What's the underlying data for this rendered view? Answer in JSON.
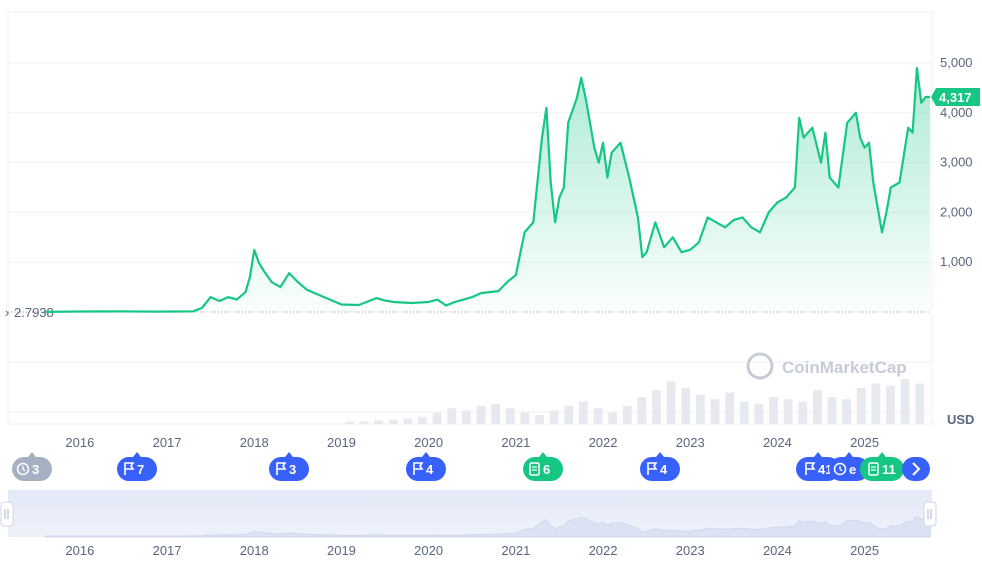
{
  "chart_data": {
    "type": "area",
    "currency_label": "USD",
    "watermark": "CoinMarketCap",
    "start_label": "2.7938",
    "current_price_label": "4,317",
    "y_ticks": [
      "5,000",
      "4,000",
      "3,000",
      "2,000",
      "1,000"
    ],
    "ylim": [
      0,
      5000
    ],
    "xlim": [
      2015.6,
      2025.75
    ],
    "x_ticks": [
      "2016",
      "2017",
      "2018",
      "2019",
      "2020",
      "2021",
      "2022",
      "2023",
      "2024",
      "2025"
    ],
    "series": [
      {
        "x": [
          2015.6,
          2016.0,
          2016.5,
          2016.9,
          2017.1,
          2017.3,
          2017.4,
          2017.5,
          2017.6,
          2017.7,
          2017.8,
          2017.9,
          2017.95,
          2018.0,
          2018.05,
          2018.1,
          2018.2,
          2018.3,
          2018.4,
          2018.5,
          2018.6,
          2018.8,
          2019.0,
          2019.2,
          2019.4,
          2019.5,
          2019.6,
          2019.8,
          2020.0,
          2020.1,
          2020.2,
          2020.3,
          2020.4,
          2020.5,
          2020.6,
          2020.7,
          2020.8,
          2020.9,
          2021.0,
          2021.1,
          2021.2,
          2021.3,
          2021.35,
          2021.4,
          2021.45,
          2021.5,
          2021.55,
          2021.6,
          2021.7,
          2021.75,
          2021.8,
          2021.85,
          2021.9,
          2021.95,
          2022.0,
          2022.05,
          2022.1,
          2022.2,
          2022.3,
          2022.4,
          2022.45,
          2022.5,
          2022.6,
          2022.7,
          2022.8,
          2022.9,
          2023.0,
          2023.1,
          2023.2,
          2023.3,
          2023.4,
          2023.5,
          2023.6,
          2023.7,
          2023.8,
          2023.9,
          2024.0,
          2024.1,
          2024.2,
          2024.25,
          2024.3,
          2024.4,
          2024.5,
          2024.55,
          2024.6,
          2024.7,
          2024.8,
          2024.9,
          2024.95,
          2025.0,
          2025.05,
          2025.1,
          2025.2,
          2025.25,
          2025.3,
          2025.4,
          2025.5,
          2025.55,
          2025.6,
          2025.65,
          2025.7,
          2025.75
        ],
        "y": [
          2.79,
          10,
          12,
          9,
          10,
          15,
          80,
          300,
          220,
          300,
          250,
          400,
          700,
          1250,
          1000,
          850,
          600,
          500,
          780,
          600,
          450,
          300,
          150,
          140,
          280,
          230,
          200,
          180,
          200,
          250,
          130,
          200,
          250,
          300,
          380,
          400,
          420,
          600,
          740,
          1600,
          1800,
          3500,
          4100,
          2600,
          1800,
          2300,
          2500,
          3800,
          4300,
          4700,
          4300,
          3800,
          3300,
          3000,
          3400,
          2700,
          3200,
          3400,
          2700,
          1900,
          1100,
          1200,
          1800,
          1300,
          1500,
          1200,
          1250,
          1400,
          1900,
          1800,
          1700,
          1850,
          1900,
          1700,
          1600,
          2000,
          2200,
          2300,
          2500,
          3900,
          3500,
          3700,
          3000,
          3600,
          2700,
          2500,
          3800,
          4000,
          3500,
          3300,
          3400,
          2600,
          1600,
          2000,
          2500,
          2600,
          3700,
          3600,
          4900,
          4200,
          4317,
          4317
        ]
      }
    ],
    "volume": [
      0.05,
      0.06,
      0.08,
      0.1,
      0.12,
      0.15,
      0.25,
      0.35,
      0.3,
      0.4,
      0.45,
      0.35,
      0.25,
      0.2,
      0.3,
      0.4,
      0.5,
      0.35,
      0.25,
      0.4,
      0.6,
      0.75,
      0.95,
      0.8,
      0.65,
      0.55,
      0.7,
      0.5,
      0.45,
      0.6,
      0.55,
      0.5,
      0.75,
      0.6,
      0.55,
      0.8,
      0.9,
      0.85,
      1.0,
      0.9
    ],
    "events": [
      {
        "label": "3",
        "icon": "history-icon",
        "color": "#a6b0c3"
      },
      {
        "label": "7",
        "icon": "flag-icon",
        "color": "#3861fb"
      },
      {
        "label": "3",
        "icon": "flag-icon",
        "color": "#3861fb"
      },
      {
        "label": "4",
        "icon": "flag-icon",
        "color": "#3861fb"
      },
      {
        "label": "6",
        "icon": "document-icon",
        "color": "#16c784"
      },
      {
        "label": "4",
        "icon": "flag-icon",
        "color": "#3861fb"
      },
      {
        "label": "41",
        "icon": "flag-icon",
        "color": "#3861fb"
      },
      {
        "label": "e",
        "icon": "clock-icon",
        "color": "#3861fb"
      },
      {
        "label": "11",
        "icon": "document-icon",
        "color": "#16c784"
      }
    ],
    "line_color": "#16c784"
  }
}
